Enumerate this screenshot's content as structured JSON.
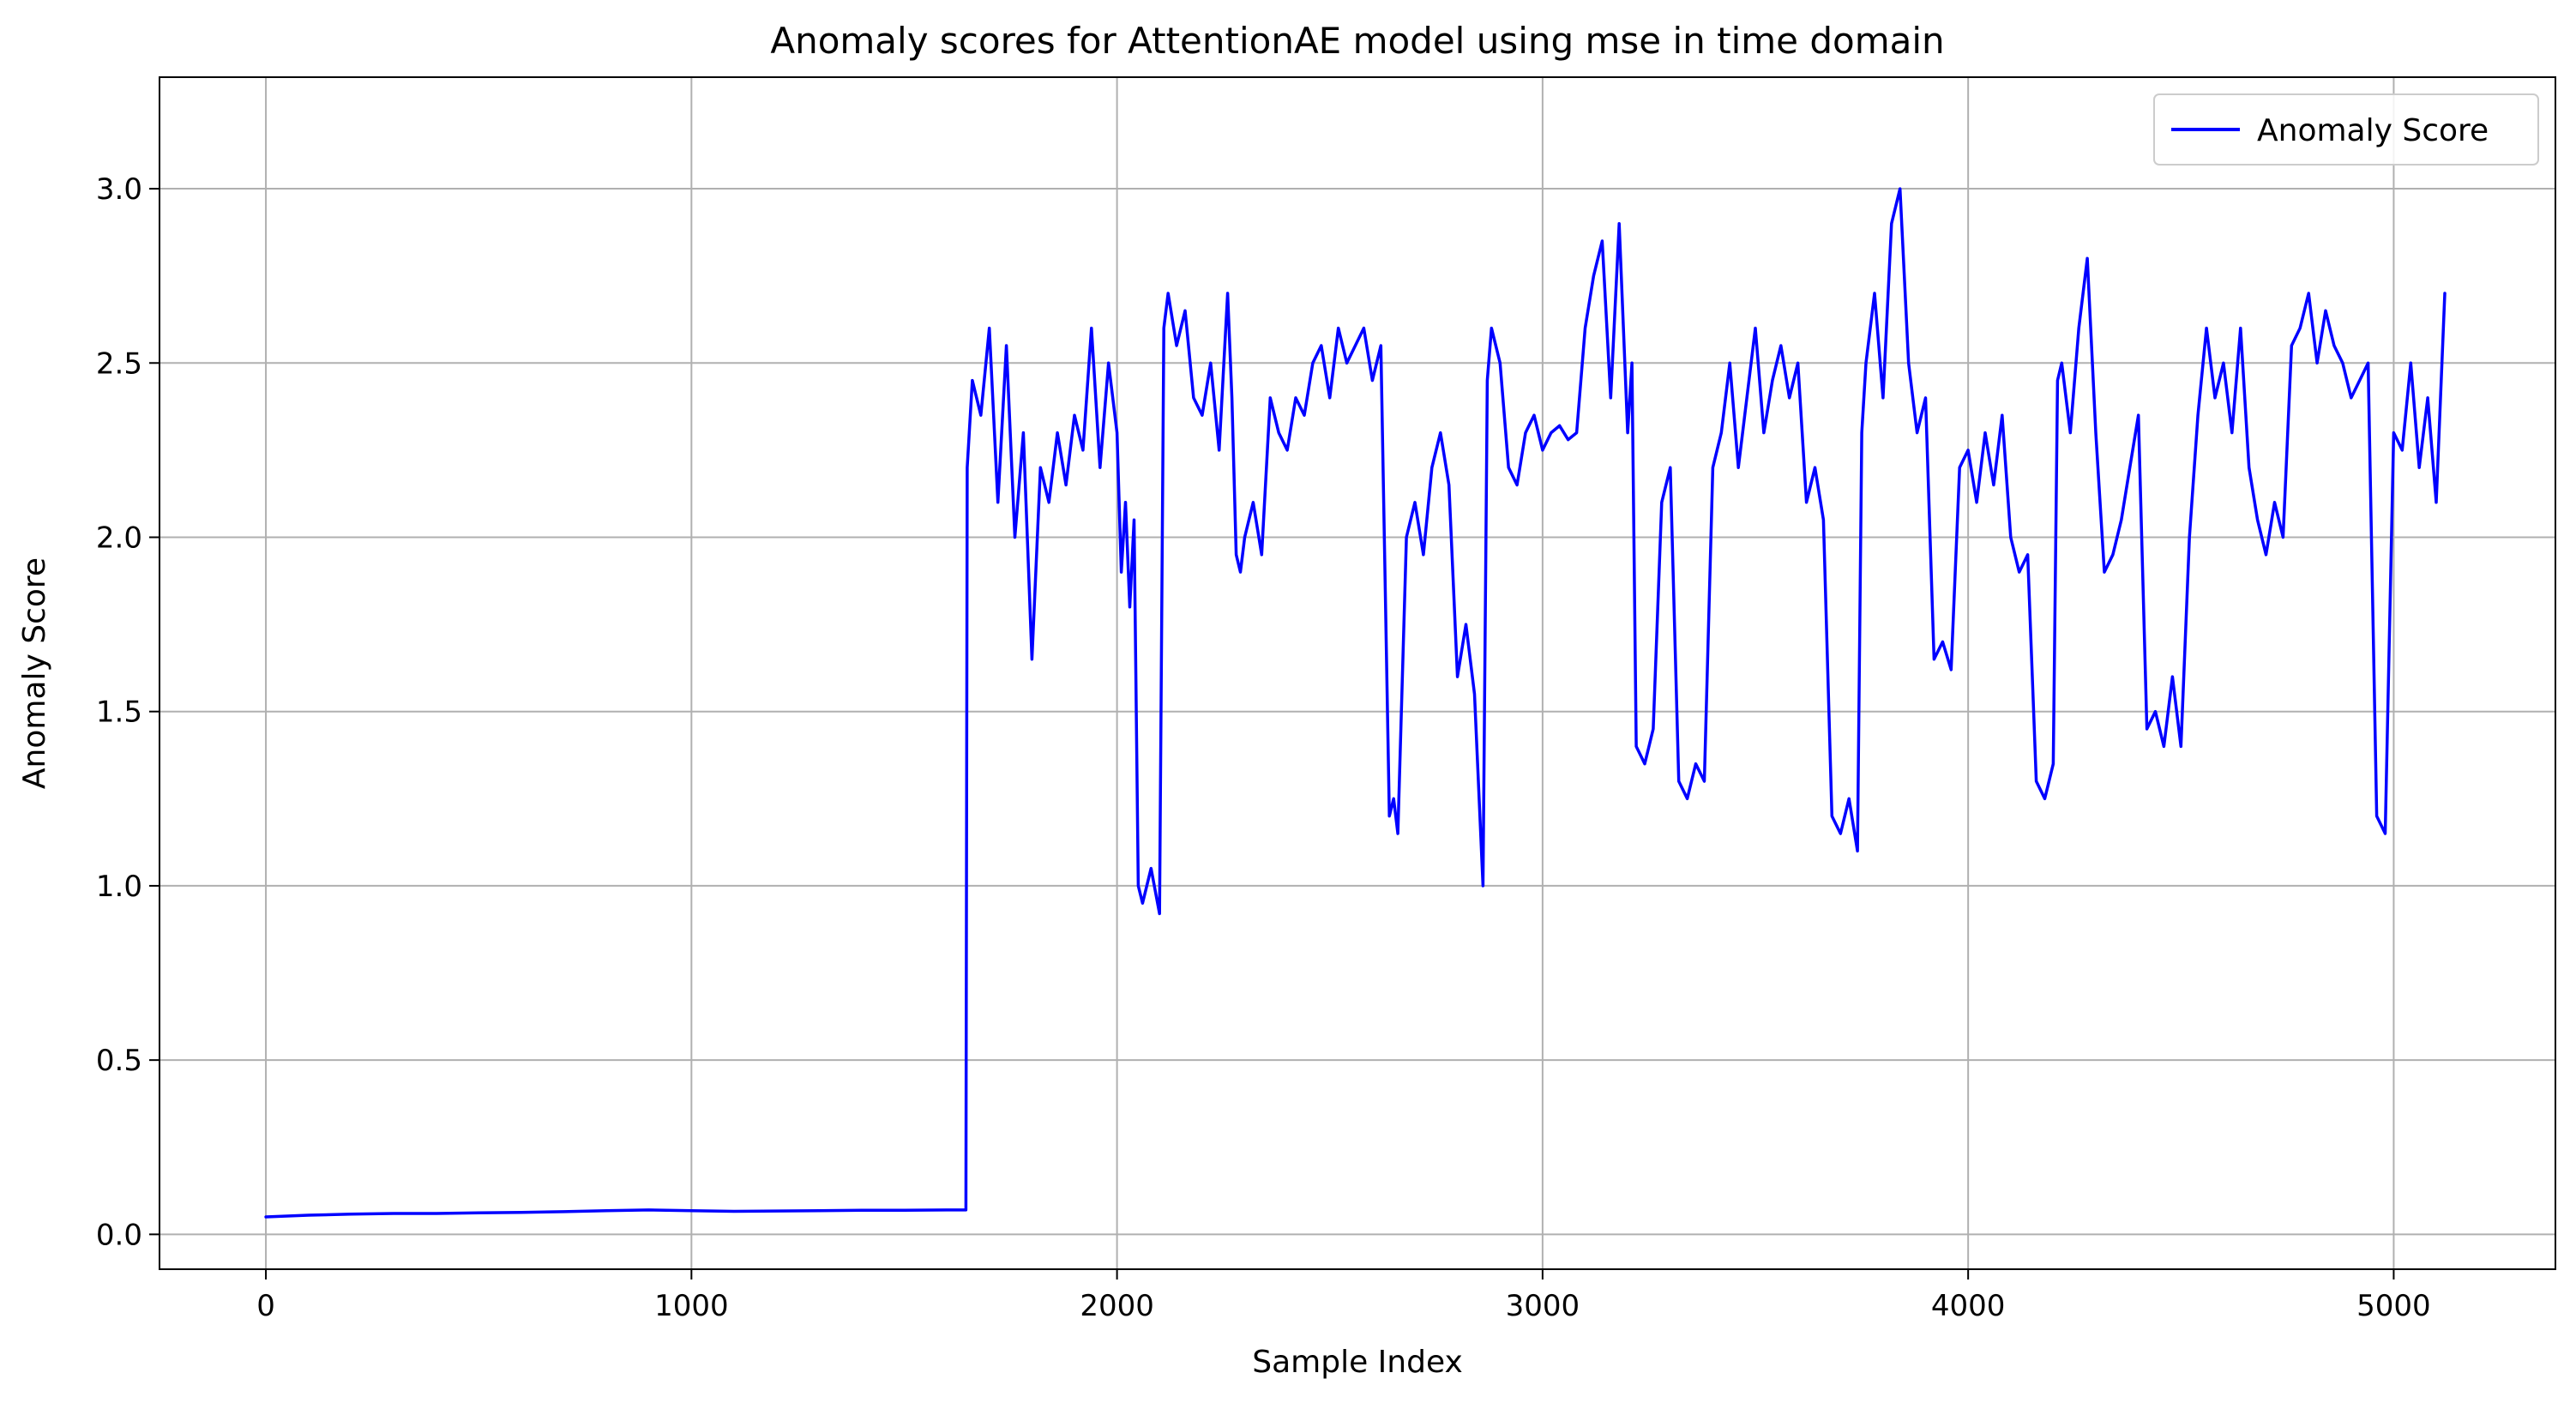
{
  "chart_data": {
    "type": "line",
    "title": "Anomaly scores for AttentionAE model using mse in time domain",
    "xlabel": "Sample Index",
    "ylabel": "Anomaly Score",
    "xlim": [
      -250,
      5380
    ],
    "ylim": [
      -0.1,
      3.32
    ],
    "xticks": [
      0,
      1000,
      2000,
      3000,
      4000,
      5000
    ],
    "xtick_labels": [
      "0",
      "1000",
      "2000",
      "3000",
      "4000",
      "5000"
    ],
    "yticks": [
      0.0,
      0.5,
      1.0,
      1.5,
      2.0,
      2.5,
      3.0
    ],
    "ytick_labels": [
      "0.0",
      "0.5",
      "1.0",
      "1.5",
      "2.0",
      "2.5",
      "3.0"
    ],
    "grid": true,
    "legend_position": "top-right",
    "series": [
      {
        "name": "Anomaly Score",
        "color": "#0000ff",
        "x": [
          0,
          100,
          200,
          300,
          400,
          500,
          600,
          700,
          800,
          900,
          1000,
          1100,
          1200,
          1300,
          1400,
          1500,
          1600,
          1645,
          1648,
          1660,
          1680,
          1700,
          1720,
          1740,
          1760,
          1780,
          1800,
          1820,
          1840,
          1860,
          1880,
          1900,
          1920,
          1940,
          1960,
          1980,
          2000,
          2010,
          2020,
          2030,
          2040,
          2050,
          2060,
          2080,
          2100,
          2110,
          2120,
          2140,
          2160,
          2180,
          2200,
          2220,
          2240,
          2260,
          2270,
          2280,
          2290,
          2300,
          2320,
          2340,
          2360,
          2380,
          2400,
          2420,
          2440,
          2460,
          2480,
          2500,
          2520,
          2540,
          2560,
          2580,
          2600,
          2620,
          2640,
          2650,
          2660,
          2680,
          2700,
          2720,
          2740,
          2760,
          2780,
          2800,
          2820,
          2840,
          2860,
          2870,
          2880,
          2900,
          2920,
          2940,
          2960,
          2980,
          3000,
          3020,
          3040,
          3060,
          3080,
          3100,
          3120,
          3140,
          3160,
          3180,
          3200,
          3210,
          3220,
          3240,
          3260,
          3280,
          3300,
          3320,
          3340,
          3360,
          3380,
          3400,
          3420,
          3440,
          3460,
          3480,
          3500,
          3520,
          3540,
          3560,
          3580,
          3600,
          3620,
          3640,
          3660,
          3680,
          3700,
          3720,
          3740,
          3750,
          3760,
          3780,
          3800,
          3820,
          3840,
          3860,
          3880,
          3900,
          3920,
          3940,
          3960,
          3980,
          4000,
          4020,
          4040,
          4060,
          4080,
          4100,
          4120,
          4140,
          4160,
          4180,
          4200,
          4210,
          4220,
          4240,
          4260,
          4280,
          4300,
          4320,
          4340,
          4360,
          4380,
          4400,
          4420,
          4440,
          4460,
          4480,
          4500,
          4520,
          4540,
          4560,
          4580,
          4600,
          4620,
          4640,
          4660,
          4680,
          4700,
          4720,
          4740,
          4760,
          4780,
          4800,
          4820,
          4840,
          4860,
          4880,
          4900,
          4920,
          4940,
          4960,
          4980,
          5000,
          5020,
          5040,
          5060,
          5080,
          5100,
          5120
        ],
        "y": [
          0.05,
          0.055,
          0.058,
          0.06,
          0.06,
          0.062,
          0.063,
          0.065,
          0.068,
          0.07,
          0.068,
          0.066,
          0.067,
          0.068,
          0.069,
          0.069,
          0.07,
          0.07,
          2.2,
          2.45,
          2.35,
          2.6,
          2.1,
          2.55,
          2.0,
          2.3,
          1.65,
          2.2,
          2.1,
          2.3,
          2.15,
          2.35,
          2.25,
          2.6,
          2.2,
          2.5,
          2.3,
          1.9,
          2.1,
          1.8,
          2.05,
          1.0,
          0.95,
          1.05,
          0.92,
          2.6,
          2.7,
          2.55,
          2.65,
          2.4,
          2.35,
          2.5,
          2.25,
          2.7,
          2.4,
          1.95,
          1.9,
          2.0,
          2.1,
          1.95,
          2.4,
          2.3,
          2.25,
          2.4,
          2.35,
          2.5,
          2.55,
          2.4,
          2.6,
          2.5,
          2.55,
          2.6,
          2.45,
          2.55,
          1.2,
          1.25,
          1.15,
          2.0,
          2.1,
          1.95,
          2.2,
          2.3,
          2.15,
          1.6,
          1.75,
          1.55,
          1.0,
          2.45,
          2.6,
          2.5,
          2.2,
          2.15,
          2.3,
          2.35,
          2.25,
          2.3,
          2.32,
          2.28,
          2.3,
          2.6,
          2.75,
          2.85,
          2.4,
          2.9,
          2.3,
          2.5,
          1.4,
          1.35,
          1.45,
          2.1,
          2.2,
          1.3,
          1.25,
          1.35,
          1.3,
          2.2,
          2.3,
          2.5,
          2.2,
          2.4,
          2.6,
          2.3,
          2.45,
          2.55,
          2.4,
          2.5,
          2.1,
          2.2,
          2.05,
          1.2,
          1.15,
          1.25,
          1.1,
          2.3,
          2.5,
          2.7,
          2.4,
          2.9,
          3.0,
          2.5,
          2.3,
          2.4,
          1.65,
          1.7,
          1.62,
          2.2,
          2.25,
          2.1,
          2.3,
          2.15,
          2.35,
          2.0,
          1.9,
          1.95,
          1.3,
          1.25,
          1.35,
          2.45,
          2.5,
          2.3,
          2.6,
          2.8,
          2.3,
          1.9,
          1.95,
          2.05,
          2.2,
          2.35,
          1.45,
          1.5,
          1.4,
          1.6,
          1.4,
          2.0,
          2.35,
          2.6,
          2.4,
          2.5,
          2.3,
          2.6,
          2.2,
          2.05,
          1.95,
          2.1,
          2.0,
          2.55,
          2.6,
          2.7,
          2.5,
          2.65,
          2.55,
          2.5,
          2.4,
          2.45,
          2.5,
          1.2,
          1.15,
          2.3,
          2.25,
          2.5,
          2.2,
          2.4,
          2.1,
          2.7
        ]
      }
    ]
  }
}
